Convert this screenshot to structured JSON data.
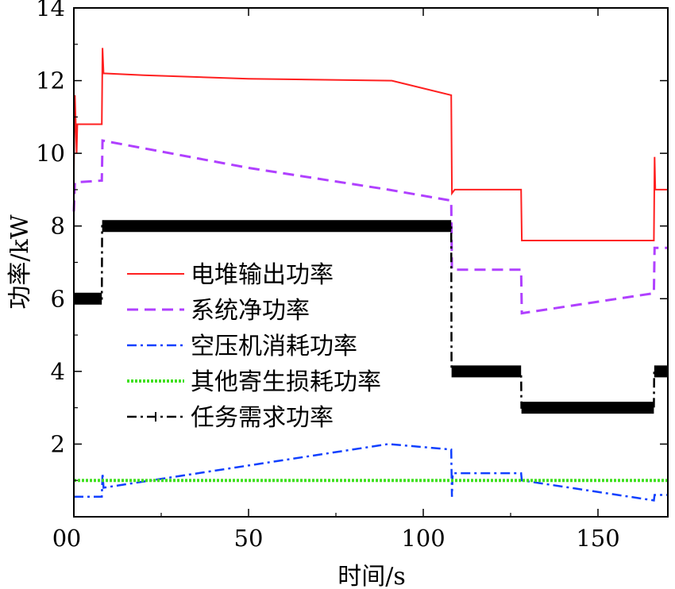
{
  "chart_data": {
    "type": "line",
    "xlabel": "时间/s",
    "ylabel": "功率/kW",
    "xlim": [
      0,
      170
    ],
    "ylim": [
      0,
      14
    ],
    "xticks": [
      "0",
      "50",
      "100",
      "150"
    ],
    "yticks": [
      "2",
      "4",
      "6",
      "8",
      "10",
      "12",
      "14"
    ],
    "grid": false,
    "legend_position": "center-left",
    "series": [
      {
        "name": "电堆输出功率",
        "color": "#ff2020",
        "style": "solid",
        "points": [
          [
            0,
            9.5
          ],
          [
            0.3,
            11.6
          ],
          [
            0.8,
            10.0
          ],
          [
            1,
            10.8
          ],
          [
            8,
            10.8
          ],
          [
            8.2,
            12.9
          ],
          [
            8.5,
            12.2
          ],
          [
            20,
            12.15
          ],
          [
            50,
            12.05
          ],
          [
            91,
            12.0
          ],
          [
            108,
            11.6
          ],
          [
            108.2,
            8.9
          ],
          [
            109,
            9.0
          ],
          [
            128,
            9.0
          ],
          [
            128.2,
            7.6
          ],
          [
            166,
            7.6
          ],
          [
            166.2,
            9.9
          ],
          [
            166.4,
            9.0
          ],
          [
            170,
            9.0
          ]
        ]
      },
      {
        "name": "系统净功率",
        "color": "#b040ff",
        "style": "dashed",
        "points": [
          [
            0,
            8.4
          ],
          [
            0.3,
            9.2
          ],
          [
            8,
            9.25
          ],
          [
            8.2,
            10.35
          ],
          [
            50,
            9.6
          ],
          [
            90,
            9.0
          ],
          [
            108,
            8.7
          ],
          [
            108.2,
            6.8
          ],
          [
            128,
            6.8
          ],
          [
            128.2,
            5.6
          ],
          [
            166,
            6.15
          ],
          [
            166.2,
            7.4
          ],
          [
            170,
            7.4
          ]
        ]
      },
      {
        "name": "空压机消耗功率",
        "color": "#1040ff",
        "style": "dashdot",
        "points": [
          [
            0,
            0.55
          ],
          [
            8,
            0.55
          ],
          [
            8.2,
            1.2
          ],
          [
            8.5,
            0.8
          ],
          [
            90,
            2.0
          ],
          [
            108,
            1.85
          ],
          [
            108.2,
            0.55
          ],
          [
            108.4,
            1.2
          ],
          [
            128,
            1.2
          ],
          [
            128.2,
            1.0
          ],
          [
            166,
            0.45
          ],
          [
            166.2,
            0.6
          ],
          [
            170,
            0.6
          ]
        ]
      },
      {
        "name": "其他寄生损耗功率",
        "color": "#40e020",
        "style": "dotted",
        "points": [
          [
            0,
            1.0
          ],
          [
            170,
            1.0
          ]
        ]
      },
      {
        "name": "任务需求功率",
        "color": "#000000",
        "style": "dashdot-plus",
        "points": [
          [
            0,
            6.0
          ],
          [
            8,
            6.0
          ],
          [
            8.1,
            8.0
          ],
          [
            108,
            8.0
          ],
          [
            108.1,
            4.0
          ],
          [
            128,
            4.0
          ],
          [
            128.1,
            3.0
          ],
          [
            166,
            3.0
          ],
          [
            166.1,
            4.0
          ],
          [
            170,
            4.0
          ]
        ]
      }
    ]
  }
}
